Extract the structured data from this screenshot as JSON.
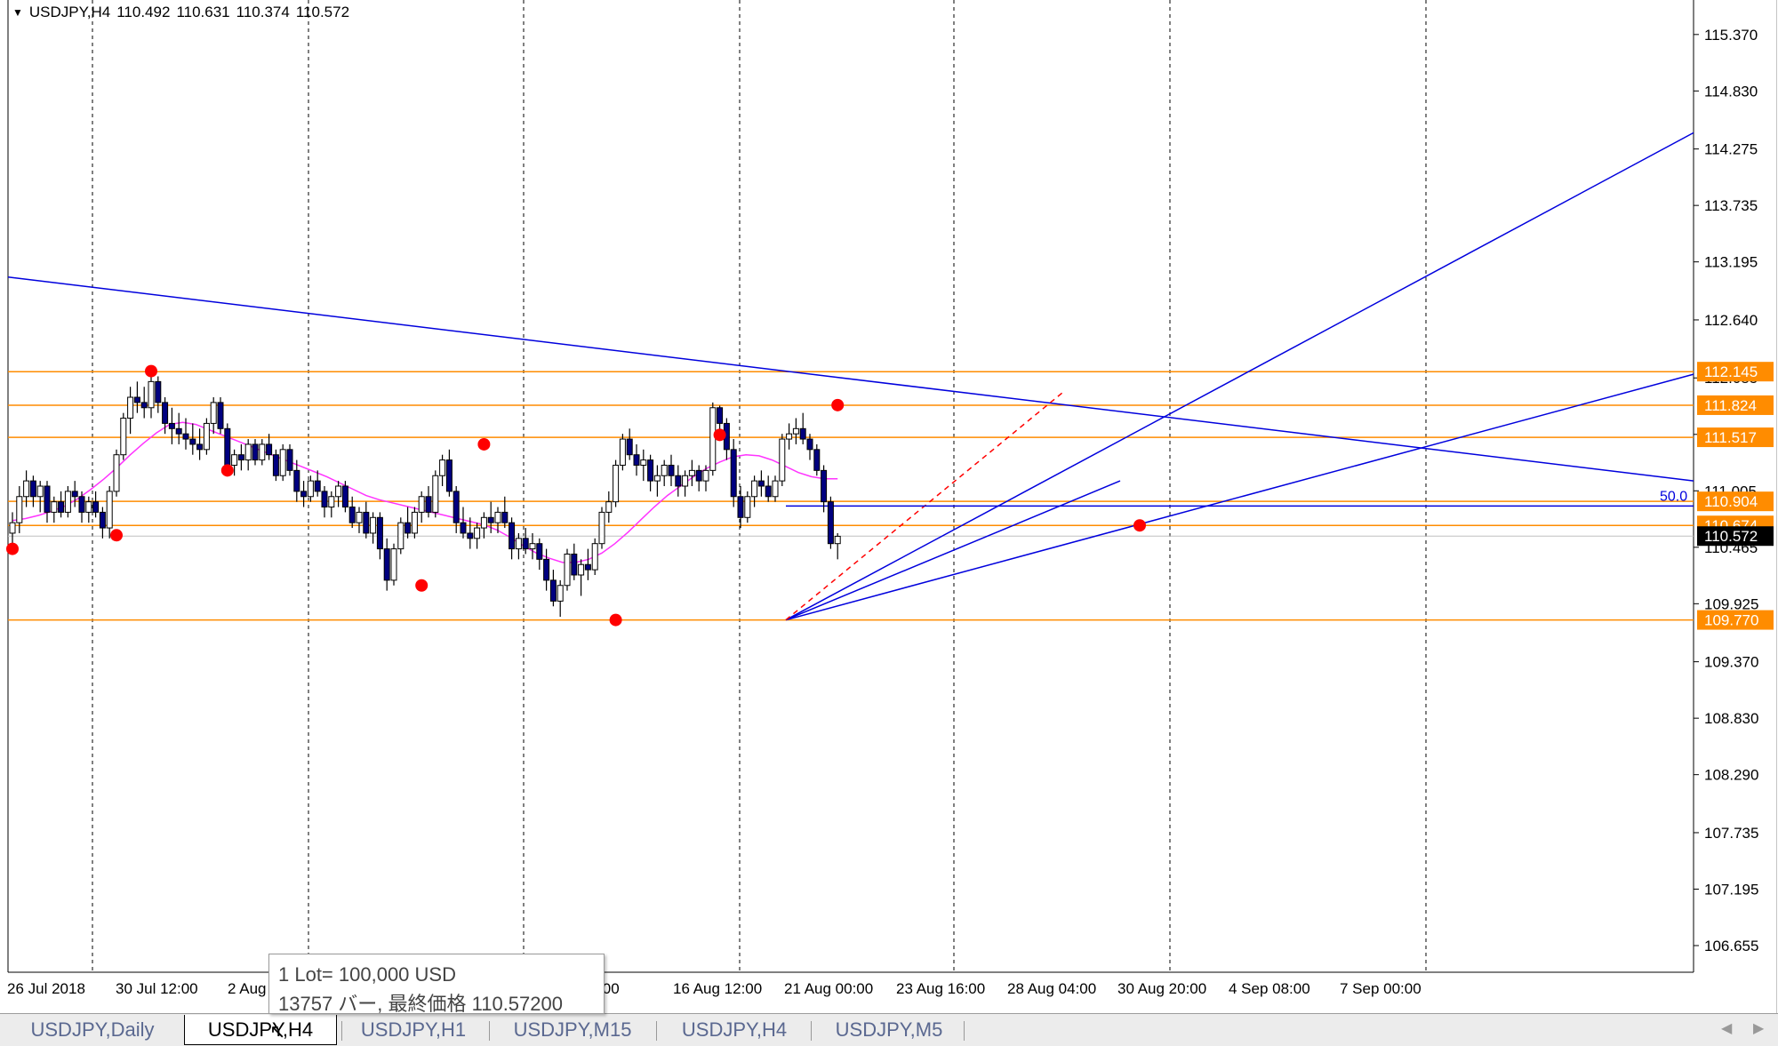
{
  "header": {
    "menu_glyph": "▼",
    "symbol": "USDJPY,H4",
    "ohlc": [
      "110.492",
      "110.631",
      "110.374",
      "110.572"
    ]
  },
  "price_axis": {
    "ticks": [
      "115.370",
      "114.830",
      "114.275",
      "113.735",
      "113.195",
      "112.640",
      "112.085",
      "111.545",
      "111.005",
      "110.465",
      "109.925",
      "109.370",
      "108.830",
      "108.290",
      "107.735",
      "107.195",
      "106.655"
    ],
    "levels": [
      {
        "price": 112.145,
        "label": "112.145"
      },
      {
        "price": 111.824,
        "label": "111.824"
      },
      {
        "price": 111.517,
        "label": "111.517"
      },
      {
        "price": 110.904,
        "label": "110.904"
      },
      {
        "price": 110.674,
        "label": "110.674"
      },
      {
        "price": 109.77,
        "label": "109.770"
      }
    ],
    "current_price": {
      "price": 110.572,
      "label": "110.572"
    },
    "fib_label": "50.0"
  },
  "time_axis": {
    "labels": [
      "26 Jul 2018",
      "30 Jul 12:00",
      "2 Aug",
      "9 20:00",
      "16 Aug 12:00",
      "21 Aug 00:00",
      "23 Aug 16:00",
      "28 Aug 04:00",
      "30 Aug 20:00",
      "4 Sep 08:00",
      "7 Sep 00:00"
    ]
  },
  "colors": {
    "level_line": "#ff8c00",
    "trend_line": "#0000dd",
    "ma_line": "#ff33ff",
    "swing_dot": "#ff0000",
    "bull_candle": "#ffffff",
    "bear_candle": "#000080",
    "separator": "#000000",
    "price_tag_bg": "#ff8c00",
    "current_tag_bg": "#000000"
  },
  "tooltip": {
    "line1": "1 Lot= 100,000 USD",
    "line2": "13757 バー, 最終価格 110.57200"
  },
  "tabs": [
    {
      "label": "USDJPY,Daily",
      "active": false
    },
    {
      "label": "USDJPY,H4",
      "active": true
    },
    {
      "label": "USDJPY,H1",
      "active": false
    },
    {
      "label": "USDJPY,M15",
      "active": false
    },
    {
      "label": "USDJPY,H4",
      "active": false
    },
    {
      "label": "USDJPY,M5",
      "active": false
    }
  ],
  "nav": {
    "left": "◀",
    "right": "▶"
  },
  "cursor_glyph": "↖",
  "chart_data": {
    "type": "candlestick",
    "series": [
      {
        "name": "USDJPY,H4",
        "values": [
          [
            110.6,
            110.8,
            110.45,
            110.7
          ],
          [
            110.7,
            111.05,
            110.6,
            110.95
          ],
          [
            110.95,
            111.2,
            110.85,
            111.1
          ],
          [
            111.1,
            111.15,
            110.85,
            110.95
          ],
          [
            110.95,
            111.1,
            110.8,
            111.05
          ],
          [
            111.05,
            111.1,
            110.7,
            110.8
          ],
          [
            110.8,
            110.95,
            110.7,
            110.9
          ],
          [
            110.9,
            111.0,
            110.75,
            110.8
          ],
          [
            110.8,
            111.05,
            110.75,
            111.0
          ],
          [
            111.0,
            111.1,
            110.85,
            110.95
          ],
          [
            110.95,
            111.0,
            110.7,
            110.8
          ],
          [
            110.8,
            110.95,
            110.7,
            110.9
          ],
          [
            110.9,
            111.0,
            110.75,
            110.8
          ],
          [
            110.8,
            110.85,
            110.55,
            110.65
          ],
          [
            110.65,
            111.05,
            110.55,
            111.0
          ],
          [
            111.0,
            111.4,
            110.95,
            111.35
          ],
          [
            111.35,
            111.75,
            111.3,
            111.7
          ],
          [
            111.7,
            112.0,
            111.55,
            111.9
          ],
          [
            111.9,
            112.05,
            111.75,
            111.85
          ],
          [
            111.85,
            112.0,
            111.7,
            111.8
          ],
          [
            111.8,
            112.12,
            111.7,
            112.05
          ],
          [
            112.05,
            112.1,
            111.75,
            111.85
          ],
          [
            111.85,
            111.9,
            111.55,
            111.65
          ],
          [
            111.65,
            111.8,
            111.45,
            111.6
          ],
          [
            111.6,
            111.75,
            111.45,
            111.55
          ],
          [
            111.55,
            111.7,
            111.4,
            111.5
          ],
          [
            111.5,
            111.65,
            111.35,
            111.45
          ],
          [
            111.45,
            111.6,
            111.3,
            111.4
          ],
          [
            111.4,
            111.7,
            111.35,
            111.65
          ],
          [
            111.65,
            111.9,
            111.55,
            111.85
          ],
          [
            111.85,
            111.9,
            111.55,
            111.6
          ],
          [
            111.6,
            111.65,
            111.15,
            111.25
          ],
          [
            111.25,
            111.4,
            111.15,
            111.35
          ],
          [
            111.35,
            111.45,
            111.2,
            111.3
          ],
          [
            111.3,
            111.5,
            111.2,
            111.45
          ],
          [
            111.45,
            111.5,
            111.25,
            111.3
          ],
          [
            111.3,
            111.5,
            111.25,
            111.45
          ],
          [
            111.45,
            111.55,
            111.3,
            111.35
          ],
          [
            111.35,
            111.4,
            111.1,
            111.15
          ],
          [
            111.15,
            111.45,
            111.1,
            111.4
          ],
          [
            111.4,
            111.45,
            111.15,
            111.2
          ],
          [
            111.2,
            111.3,
            110.9,
            111.0
          ],
          [
            111.0,
            111.1,
            110.85,
            110.95
          ],
          [
            110.95,
            111.15,
            110.9,
            111.1
          ],
          [
            111.1,
            111.2,
            110.95,
            111.0
          ],
          [
            111.0,
            111.05,
            110.75,
            110.85
          ],
          [
            110.85,
            111.0,
            110.75,
            110.95
          ],
          [
            110.95,
            111.1,
            110.85,
            111.05
          ],
          [
            111.05,
            111.1,
            110.8,
            110.85
          ],
          [
            110.85,
            110.95,
            110.65,
            110.7
          ],
          [
            110.7,
            110.85,
            110.6,
            110.8
          ],
          [
            110.8,
            110.9,
            110.55,
            110.6
          ],
          [
            110.6,
            110.8,
            110.5,
            110.75
          ],
          [
            110.75,
            110.8,
            110.35,
            110.45
          ],
          [
            110.45,
            110.55,
            110.05,
            110.15
          ],
          [
            110.15,
            110.5,
            110.1,
            110.45
          ],
          [
            110.45,
            110.75,
            110.4,
            110.7
          ],
          [
            110.7,
            110.85,
            110.55,
            110.6
          ],
          [
            110.6,
            110.85,
            110.55,
            110.8
          ],
          [
            110.8,
            111.0,
            110.7,
            110.95
          ],
          [
            110.95,
            111.05,
            110.75,
            110.8
          ],
          [
            110.8,
            111.2,
            110.75,
            111.15
          ],
          [
            111.15,
            111.35,
            111.05,
            111.3
          ],
          [
            111.3,
            111.4,
            110.95,
            111.0
          ],
          [
            111.0,
            111.05,
            110.6,
            110.7
          ],
          [
            110.7,
            110.85,
            110.55,
            110.6
          ],
          [
            110.6,
            110.75,
            110.45,
            110.55
          ],
          [
            110.55,
            110.7,
            110.45,
            110.65
          ],
          [
            110.65,
            110.8,
            110.55,
            110.75
          ],
          [
            110.75,
            110.9,
            110.6,
            110.7
          ],
          [
            110.7,
            110.85,
            110.6,
            110.8
          ],
          [
            110.8,
            110.95,
            110.65,
            110.7
          ],
          [
            110.7,
            110.75,
            110.35,
            110.45
          ],
          [
            110.45,
            110.6,
            110.35,
            110.55
          ],
          [
            110.55,
            110.65,
            110.4,
            110.45
          ],
          [
            110.45,
            110.6,
            110.35,
            110.5
          ],
          [
            110.5,
            110.55,
            110.25,
            110.35
          ],
          [
            110.35,
            110.45,
            110.05,
            110.15
          ],
          [
            110.15,
            110.25,
            109.9,
            109.95
          ],
          [
            109.95,
            110.15,
            109.8,
            110.1
          ],
          [
            110.1,
            110.45,
            110.05,
            110.4
          ],
          [
            110.4,
            110.5,
            110.15,
            110.2
          ],
          [
            110.2,
            110.35,
            110.0,
            110.3
          ],
          [
            110.3,
            110.45,
            110.15,
            110.25
          ],
          [
            110.25,
            110.55,
            110.2,
            110.5
          ],
          [
            110.5,
            110.85,
            110.45,
            110.8
          ],
          [
            110.8,
            111.0,
            110.7,
            110.9
          ],
          [
            110.9,
            111.3,
            110.85,
            111.25
          ],
          [
            111.25,
            111.55,
            111.2,
            111.5
          ],
          [
            111.5,
            111.6,
            111.3,
            111.35
          ],
          [
            111.35,
            111.45,
            111.15,
            111.25
          ],
          [
            111.25,
            111.4,
            111.1,
            111.3
          ],
          [
            111.3,
            111.35,
            111.0,
            111.1
          ],
          [
            111.1,
            111.25,
            110.95,
            111.15
          ],
          [
            111.15,
            111.3,
            111.05,
            111.25
          ],
          [
            111.25,
            111.35,
            111.05,
            111.15
          ],
          [
            111.15,
            111.25,
            110.95,
            111.05
          ],
          [
            111.05,
            111.2,
            110.95,
            111.15
          ],
          [
            111.15,
            111.3,
            111.05,
            111.2
          ],
          [
            111.2,
            111.25,
            111.0,
            111.1
          ],
          [
            111.1,
            111.25,
            111.0,
            111.2
          ],
          [
            111.2,
            111.85,
            111.15,
            111.8
          ],
          [
            111.8,
            111.82,
            111.55,
            111.65
          ],
          [
            111.65,
            111.7,
            111.3,
            111.4
          ],
          [
            111.4,
            111.5,
            110.85,
            110.95
          ],
          [
            110.95,
            111.05,
            110.65,
            110.75
          ],
          [
            110.75,
            111.0,
            110.7,
            110.95
          ],
          [
            110.95,
            111.15,
            110.85,
            111.1
          ],
          [
            111.1,
            111.2,
            110.95,
            111.05
          ],
          [
            111.05,
            111.15,
            110.9,
            110.95
          ],
          [
            110.95,
            111.15,
            110.9,
            111.1
          ],
          [
            111.1,
            111.55,
            111.05,
            111.5
          ],
          [
            111.5,
            111.65,
            111.4,
            111.55
          ],
          [
            111.55,
            111.7,
            111.45,
            111.6
          ],
          [
            111.6,
            111.75,
            111.45,
            111.5
          ],
          [
            111.5,
            111.55,
            111.3,
            111.4
          ],
          [
            111.4,
            111.45,
            111.15,
            111.2
          ],
          [
            111.2,
            111.25,
            110.8,
            110.9
          ],
          [
            110.9,
            110.95,
            110.45,
            110.5
          ],
          [
            110.5,
            110.6,
            110.35,
            110.57
          ]
        ]
      }
    ],
    "moving_average": [
      110.72,
      110.74,
      110.77,
      110.81,
      110.86,
      110.93,
      111.02,
      111.12,
      111.23,
      111.35,
      111.46,
      111.56,
      111.64,
      111.66,
      111.64,
      111.59,
      111.54,
      111.49,
      111.44,
      111.39,
      111.34,
      111.29,
      111.24,
      111.19,
      111.14,
      111.08,
      111.02,
      110.96,
      110.92,
      110.89,
      110.86,
      110.83,
      110.8,
      110.77,
      110.74,
      110.71,
      110.68,
      110.63,
      110.56,
      110.48,
      110.41,
      110.36,
      110.32,
      110.32,
      110.35,
      110.41,
      110.5,
      110.61,
      110.73,
      110.85,
      110.96,
      111.05,
      111.14,
      111.22,
      111.28,
      111.33,
      111.35,
      111.34,
      111.3,
      111.24,
      111.18,
      111.14,
      111.12,
      111.12
    ],
    "levels": [
      112.145,
      111.824,
      111.517,
      110.904,
      110.674,
      109.77
    ],
    "ylim": [
      106.4,
      115.7
    ],
    "x_range": [
      0,
      120
    ]
  }
}
